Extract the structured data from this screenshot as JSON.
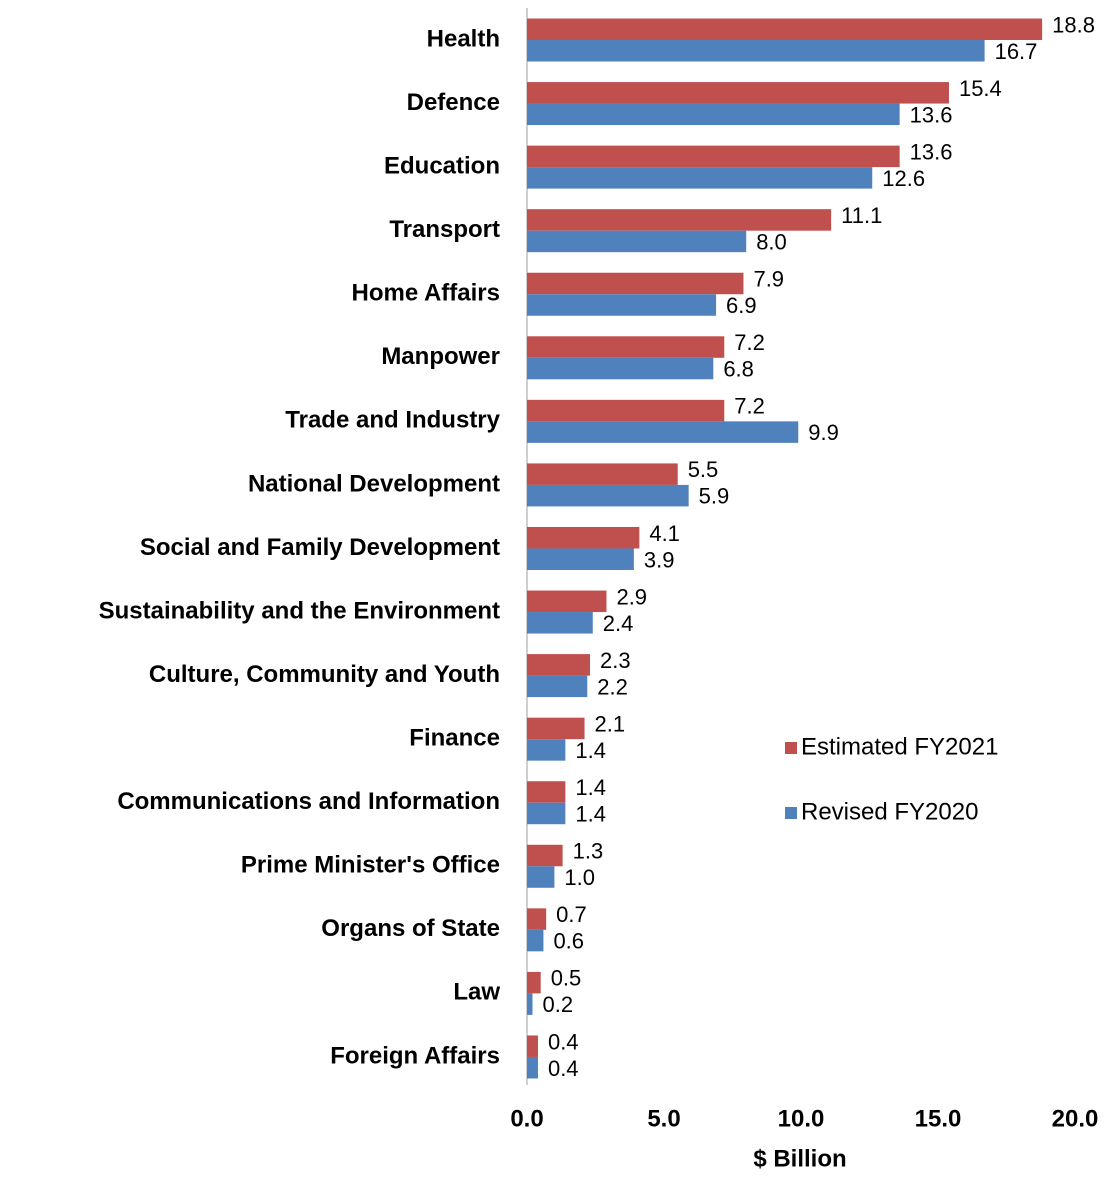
{
  "chart_data": {
    "type": "hbar",
    "categories": [
      "Health",
      "Defence",
      "Education",
      "Transport",
      "Home Affairs",
      "Manpower",
      "Trade and Industry",
      "National Development",
      "Social and Family Development",
      "Sustainability and the Environment",
      "Culture, Community and Youth",
      "Finance",
      "Communications and Information",
      "Prime Minister's Office",
      "Organs of State",
      "Law",
      "Foreign Affairs"
    ],
    "series": [
      {
        "name": "Estimated FY2021",
        "color": "#c0504d",
        "values": [
          18.8,
          15.4,
          13.6,
          11.1,
          7.9,
          7.2,
          7.2,
          5.5,
          4.1,
          2.9,
          2.3,
          2.1,
          1.4,
          1.3,
          0.7,
          0.5,
          0.4
        ],
        "value_labels": [
          "18.8",
          "15.4",
          "13.6",
          "11.1",
          "7.9",
          "7.2",
          "7.2",
          "5.5",
          "4.1",
          "2.9",
          "2.3",
          "2.1",
          "1.4",
          "1.3",
          "0.7",
          "0.5",
          "0.4"
        ]
      },
      {
        "name": "Revised FY2020",
        "color": "#4f81bd",
        "values": [
          16.7,
          13.6,
          12.6,
          8.0,
          6.9,
          6.8,
          9.9,
          5.9,
          3.9,
          2.4,
          2.2,
          1.4,
          1.4,
          1.0,
          0.6,
          0.2,
          0.4
        ],
        "value_labels": [
          "16.7",
          "13.6",
          "12.6",
          "8.0",
          "6.9",
          "6.8",
          "9.9",
          "5.9",
          "3.9",
          "2.4",
          "2.2",
          "1.4",
          "1.4",
          "1.0",
          "0.6",
          "0.2",
          "0.4"
        ]
      }
    ],
    "xlabel": "$ Billion",
    "xlim": [
      0,
      20
    ],
    "xticks": [
      {
        "value": 0,
        "label": "0.0"
      },
      {
        "value": 5,
        "label": "5.0"
      },
      {
        "value": 10,
        "label": "10.0"
      },
      {
        "value": 15,
        "label": "15.0"
      },
      {
        "value": 20,
        "label": "20.0"
      }
    ],
    "legend": "right"
  }
}
